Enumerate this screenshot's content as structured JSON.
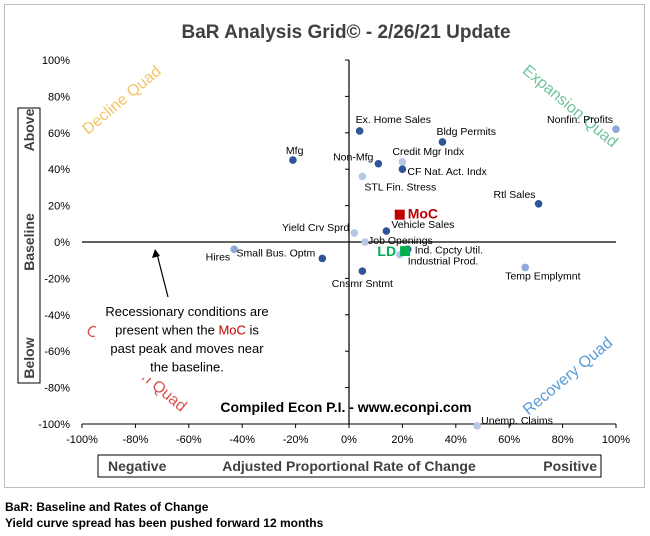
{
  "chart_data": {
    "type": "scatter",
    "title": "BaR Analysis Grid© - 2/26/21 Update",
    "xlabel": "Adjusted Proportional Rate of Change",
    "xlabel_left": "Negative",
    "xlabel_right": "Positive",
    "ylabel_top": "Above",
    "ylabel_mid": "Baseline",
    "ylabel_bottom": "Below",
    "xlim": [
      -100,
      100
    ],
    "ylim": [
      -100,
      100
    ],
    "x_ticks": [
      -100,
      -80,
      -60,
      -40,
      -20,
      0,
      20,
      40,
      60,
      80,
      100
    ],
    "y_ticks": [
      -100,
      -80,
      -60,
      -40,
      -20,
      0,
      20,
      40,
      60,
      80,
      100
    ],
    "x_tick_labels": [
      "-100%",
      "-80%",
      "-60%",
      "-40%",
      "-20%",
      "0%",
      "20%",
      "40%",
      "60%",
      "80%",
      "100%"
    ],
    "y_tick_labels": [
      "-100%",
      "-80%",
      "-60%",
      "-40%",
      "-20%",
      "0%",
      "20%",
      "40%",
      "60%",
      "80%",
      "100%"
    ],
    "grid": false,
    "quadrants": [
      {
        "label": "Decline Quad",
        "position": "top-left",
        "color": "#f2c46a"
      },
      {
        "label": "Expansion Quad",
        "position": "top-right",
        "color": "#70c49a"
      },
      {
        "label": "Contraction Quad",
        "position": "bottom-left",
        "color": "#d9534f"
      },
      {
        "label": "Recovery Quad",
        "position": "bottom-right",
        "color": "#5a9bd4"
      }
    ],
    "points": [
      {
        "label": "Ex. Home Sales",
        "x": 4,
        "y": 61,
        "color": "#2f5597"
      },
      {
        "label": "Bldg Permits",
        "x": 35,
        "y": 55,
        "color": "#2f5597"
      },
      {
        "label": "Nonfin. Profits",
        "x": 100,
        "y": 62,
        "color": "#8ea9db"
      },
      {
        "label": "Mfg",
        "x": -21,
        "y": 45,
        "color": "#2f5597"
      },
      {
        "label": "Non-Mfg",
        "x": 11,
        "y": 43,
        "color": "#2f5597"
      },
      {
        "label": "Credit Mgr Indx",
        "x": 20,
        "y": 44,
        "color": "#b4c7e7"
      },
      {
        "label": "CF Nat. Act. Indx",
        "x": 20,
        "y": 40,
        "color": "#2f5597"
      },
      {
        "label": "STL Fin. Stress",
        "x": 5,
        "y": 36,
        "color": "#b4c7e7"
      },
      {
        "label": "Rtl Sales",
        "x": 71,
        "y": 21,
        "color": "#2f5597"
      },
      {
        "label": "Yield Crv Sprd",
        "x": 2,
        "y": 5,
        "color": "#b4c7e7"
      },
      {
        "label": "Vehicle Sales",
        "x": 14,
        "y": 6,
        "color": "#2f5597"
      },
      {
        "label": "Job Openings",
        "x": 6,
        "y": 0,
        "color": "#b4c7e7"
      },
      {
        "label": "Hires",
        "x": -43,
        "y": -4,
        "color": "#8ea9db"
      },
      {
        "label": "Small Bus. Optm",
        "x": -10,
        "y": -9,
        "color": "#2f5597"
      },
      {
        "label": "Ind. Cpcty Util.",
        "x": 22,
        "y": -4,
        "color": "#2f5597"
      },
      {
        "label": "Industrial Prod.",
        "x": 19,
        "y": -7,
        "color": "#b4c7e7"
      },
      {
        "label": "Cnsmr Sntmt",
        "x": 5,
        "y": -16,
        "color": "#2f5597"
      },
      {
        "label": "Temp Emplymnt",
        "x": 66,
        "y": -14,
        "color": "#8ea9db"
      },
      {
        "label": "Unemp. Claims",
        "x": 48,
        "y": -101,
        "color": "#b4c7e7"
      }
    ],
    "special_points": [
      {
        "label": "MoC",
        "x": 19,
        "y": 15,
        "color": "#c00000"
      },
      {
        "label": "LD",
        "x": 21,
        "y": -5,
        "color": "#00b050"
      }
    ],
    "annotations": {
      "note_parts": [
        "Recessionary conditions are present when the ",
        "MoC",
        " is past peak and moves near the baseline."
      ],
      "note_lines": [
        [
          "Recessionary conditions are"
        ],
        [
          "present when the ",
          "MoC",
          " is"
        ],
        [
          "past peak and moves near"
        ],
        [
          "the baseline."
        ]
      ],
      "credit": "Compiled Econ P.I. - www.econpi.com"
    }
  },
  "footnotes": {
    "line1": "BaR: Baseline and Rates of Change",
    "line2": "Yield curve spread has been pushed forward 12 months"
  }
}
